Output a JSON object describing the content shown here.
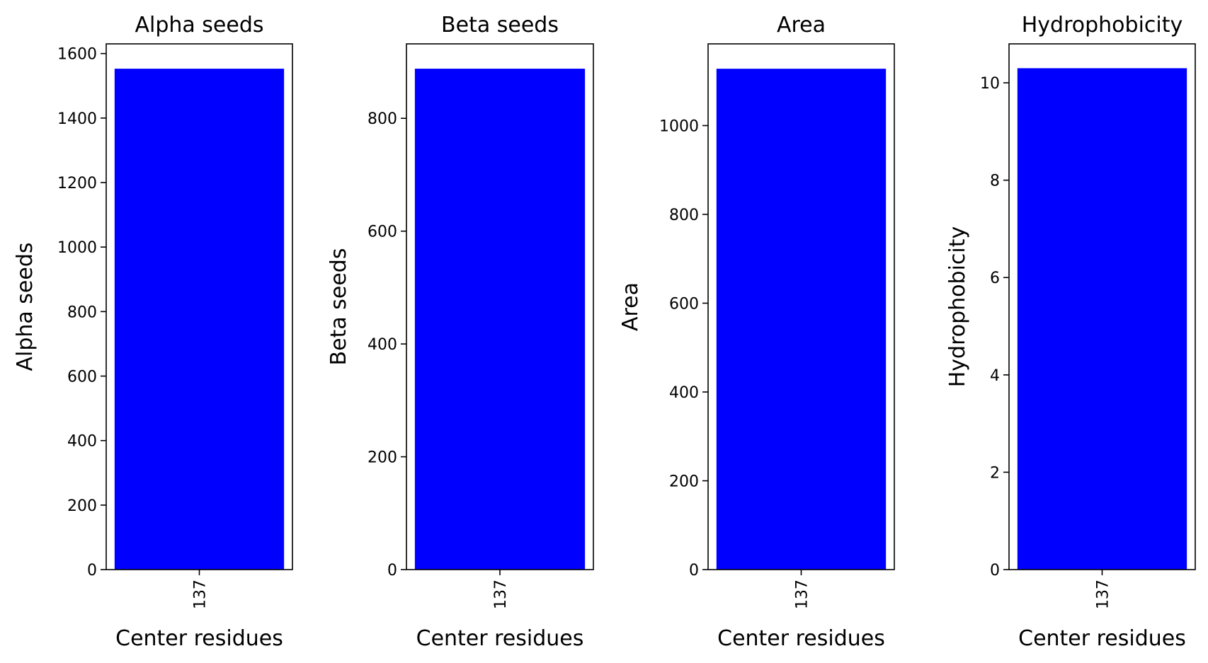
{
  "chart_data": [
    {
      "type": "bar",
      "title": "Alpha seeds",
      "xlabel": "Center residues",
      "ylabel": "Alpha seeds",
      "categories": [
        "137"
      ],
      "values": [
        1553
      ],
      "ylim": [
        0,
        1630
      ],
      "yticks": [
        0,
        200,
        400,
        600,
        800,
        1000,
        1200,
        1400,
        1600
      ],
      "bar_color": "#0000ff",
      "grid": false,
      "legend": "none"
    },
    {
      "type": "bar",
      "title": "Beta seeds",
      "xlabel": "Center residues",
      "ylabel": "Beta seeds",
      "categories": [
        "137"
      ],
      "values": [
        888
      ],
      "ylim": [
        0,
        932
      ],
      "yticks": [
        0,
        200,
        400,
        600,
        800
      ],
      "bar_color": "#0000ff",
      "grid": false,
      "legend": "none"
    },
    {
      "type": "bar",
      "title": "Area",
      "xlabel": "Center residues",
      "ylabel": "Area",
      "categories": [
        "137"
      ],
      "values": [
        1128
      ],
      "ylim": [
        0,
        1184
      ],
      "yticks": [
        0,
        200,
        400,
        600,
        800,
        1000
      ],
      "bar_color": "#0000ff",
      "grid": false,
      "legend": "none"
    },
    {
      "type": "bar",
      "title": "Hydrophobicity",
      "xlabel": "Center residues",
      "ylabel": "Hydrophobicity",
      "categories": [
        "137"
      ],
      "values": [
        10.3
      ],
      "ylim": [
        0,
        10.8
      ],
      "yticks": [
        0,
        2,
        4,
        6,
        8,
        10
      ],
      "bar_color": "#0000ff",
      "grid": false,
      "legend": "none"
    }
  ]
}
